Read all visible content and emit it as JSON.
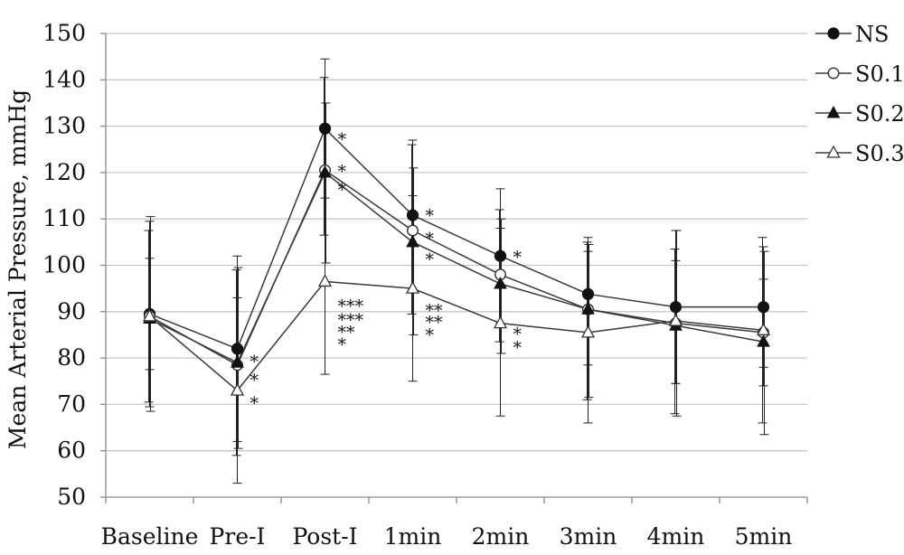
{
  "chart_data": {
    "type": "line",
    "ylabel": "Mean Arterial Pressure, mmHg",
    "xlabel": "",
    "categories": [
      "Baseline",
      "Pre-I",
      "Post-I",
      "1min",
      "2min",
      "3min",
      "4min",
      "5min"
    ],
    "ylim": [
      50,
      150
    ],
    "yticks": [
      50,
      60,
      70,
      80,
      90,
      100,
      110,
      120,
      130,
      140,
      150
    ],
    "grid": "horizontal",
    "legend_position": "top-right",
    "series": [
      {
        "name": "NS",
        "marker": "filled-circle",
        "values": [
          89.5,
          82,
          129.5,
          110.8,
          102,
          93.8,
          91,
          91
        ],
        "error_bars": [
          [
            69.5,
            109.5
          ],
          [
            62,
            102
          ],
          [
            114.5,
            144.5
          ],
          [
            94.5,
            127
          ],
          [
            87.5,
            116.5
          ],
          [
            78.5,
            106
          ],
          [
            74.5,
            107.5
          ],
          [
            78,
            104
          ]
        ]
      },
      {
        "name": "S0.1",
        "marker": "open-circle",
        "values": [
          89,
          78.5,
          120.5,
          107.5,
          98,
          90.5,
          87.5,
          85.5
        ],
        "error_bars": [
          [
            70.5,
            107.5
          ],
          [
            59,
            99
          ],
          [
            106.5,
            140.5
          ],
          [
            89.5,
            126
          ],
          [
            83.5,
            112
          ],
          [
            71,
            105
          ],
          [
            68,
            103.5
          ],
          [
            66,
            106
          ]
        ]
      },
      {
        "name": "S0.2",
        "marker": "filled-triangle",
        "values": [
          88.5,
          79,
          120,
          105,
          96,
          90.5,
          87,
          83.5
        ],
        "error_bars": [
          [
            68.5,
            110.5
          ],
          [
            60.5,
            99.5
          ],
          [
            100.5,
            135
          ],
          [
            85,
            121
          ],
          [
            81,
            110
          ],
          [
            71.5,
            104.5
          ],
          [
            67.5,
            107.5
          ],
          [
            63.5,
            103
          ]
        ]
      },
      {
        "name": "S0.3",
        "marker": "open-triangle",
        "values": [
          89,
          73,
          96.5,
          95,
          87.5,
          85.5,
          88,
          86
        ],
        "error_bars": [
          [
            77.5,
            101.5
          ],
          [
            53,
            93
          ],
          [
            76.5,
            121
          ],
          [
            75,
            115
          ],
          [
            67.5,
            108
          ],
          [
            66,
            103
          ],
          [
            74.5,
            101
          ],
          [
            74,
            97
          ]
        ]
      }
    ],
    "annotations": [
      {
        "x_index": 1,
        "y": 80.5,
        "text": "*"
      },
      {
        "x_index": 1,
        "y": 76.5,
        "text": "*"
      },
      {
        "x_index": 1,
        "y": 71.5,
        "text": "*"
      },
      {
        "x_index": 2,
        "y": 128.5,
        "text": "*"
      },
      {
        "x_index": 2,
        "y": 121.5,
        "text": "*"
      },
      {
        "x_index": 2,
        "y": 117.5,
        "text": "*"
      },
      {
        "x_index": 2,
        "y": 92.5,
        "text": "***"
      },
      {
        "x_index": 2,
        "y": 89.5,
        "text": "***"
      },
      {
        "x_index": 2,
        "y": 86.8,
        "text": "**"
      },
      {
        "x_index": 2,
        "y": 84.2,
        "text": "*"
      },
      {
        "x_index": 3,
        "y": 112,
        "text": "*"
      },
      {
        "x_index": 3,
        "y": 107,
        "text": "*"
      },
      {
        "x_index": 3,
        "y": 102.5,
        "text": "*"
      },
      {
        "x_index": 3,
        "y": 91.5,
        "text": "**"
      },
      {
        "x_index": 3,
        "y": 89,
        "text": "**"
      },
      {
        "x_index": 3,
        "y": 86.3,
        "text": "*"
      },
      {
        "x_index": 4,
        "y": 103,
        "text": "*"
      },
      {
        "x_index": 4,
        "y": 86.5,
        "text": "*"
      },
      {
        "x_index": 4,
        "y": 83.5,
        "text": "*"
      }
    ]
  },
  "colors": {
    "line": "#3a3a3a",
    "marker": "#111111",
    "grid": "#c8c8c8",
    "axis": "#8a8a8a",
    "error_bar": "#222222",
    "background": "#ffffff"
  }
}
